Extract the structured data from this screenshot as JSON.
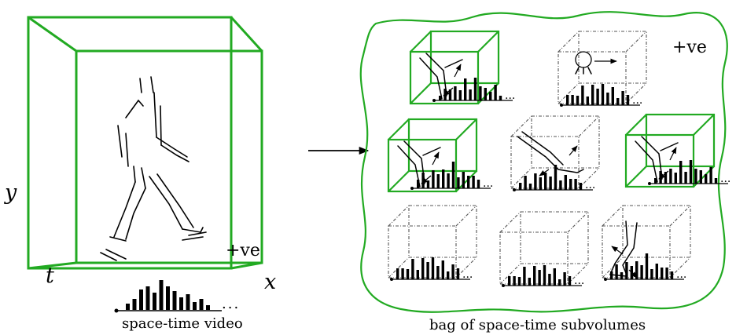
{
  "colors": {
    "accent": "#22aa22",
    "ink": "#000000",
    "dash": "#555555"
  },
  "left_panel": {
    "axis_y": "y",
    "axis_t": "t",
    "axis_x": "x",
    "label_positive": "+ve",
    "caption": "space-time video",
    "histogram_ellipsis": "..."
  },
  "right_panel": {
    "label_positive": "+ve",
    "caption": "bag of space-time subvolumes",
    "histogram_ellipsis": "..."
  },
  "subvolumes": [
    {
      "id": "r1c1",
      "positive": true,
      "content": "arm-segments-with-motion-arrows"
    },
    {
      "id": "r1c2",
      "positive": false,
      "content": "head-with-motion-arrow"
    },
    {
      "id": "r2c1",
      "positive": true,
      "content": "arm-segments-with-motion-arrows"
    },
    {
      "id": "r2c2",
      "positive": false,
      "content": "foot-with-motion-arrows"
    },
    {
      "id": "r2c3",
      "positive": true,
      "content": "arm-segments-with-motion-arrows"
    },
    {
      "id": "r3c1",
      "positive": false,
      "content": "empty"
    },
    {
      "id": "r3c2",
      "positive": false,
      "content": "empty"
    },
    {
      "id": "r3c3",
      "positive": false,
      "content": "leg-with-motion-arrows"
    }
  ]
}
